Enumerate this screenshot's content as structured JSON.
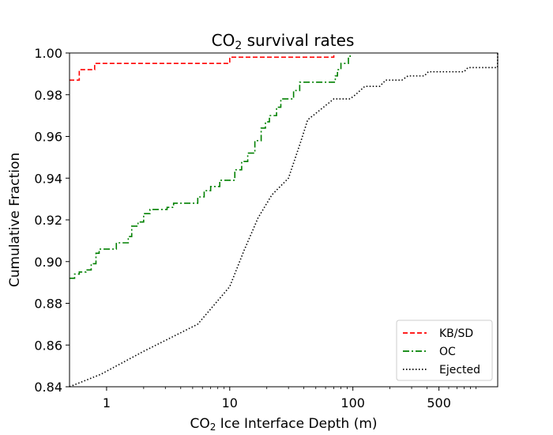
{
  "chart_data": {
    "type": "line",
    "title": "CO2 survival rates",
    "title_parts": {
      "pre": "CO",
      "sub": "2",
      "post": " survival rates"
    },
    "xlabel": "CO2 Ice Interface Depth (m)",
    "xlabel_parts": {
      "pre": "CO",
      "sub": "2",
      "post": " Ice Interface Depth (m)"
    },
    "ylabel": "Cumulative Fraction",
    "xscale": "log",
    "xlim": [
      0.5,
      1500
    ],
    "ylim": [
      0.84,
      1.0
    ],
    "xticks": [
      {
        "value": 1,
        "label": "1"
      },
      {
        "value": 10,
        "label": "10"
      },
      {
        "value": 100,
        "label": "100"
      },
      {
        "value": 500,
        "label": "500"
      }
    ],
    "yticks": [
      {
        "value": 0.84,
        "label": "0.84"
      },
      {
        "value": 0.86,
        "label": "0.86"
      },
      {
        "value": 0.88,
        "label": "0.88"
      },
      {
        "value": 0.9,
        "label": "0.90"
      },
      {
        "value": 0.92,
        "label": "0.92"
      },
      {
        "value": 0.94,
        "label": "0.94"
      },
      {
        "value": 0.96,
        "label": "0.96"
      },
      {
        "value": 0.98,
        "label": "0.98"
      },
      {
        "value": 1.0,
        "label": "1.00"
      }
    ],
    "legend_position": "bottom-right",
    "series": [
      {
        "name": "KB/SD",
        "color": "#ff0000",
        "style": "dashed",
        "step": true,
        "points": [
          [
            0.5,
            0.987
          ],
          [
            0.6,
            0.992
          ],
          [
            0.8,
            0.995
          ],
          [
            10,
            0.998
          ],
          [
            70,
            1.0
          ]
        ]
      },
      {
        "name": "OC",
        "color": "#008000",
        "style": "dashdot",
        "step": true,
        "points": [
          [
            0.5,
            0.892
          ],
          [
            0.55,
            0.894
          ],
          [
            0.6,
            0.895
          ],
          [
            0.68,
            0.896
          ],
          [
            0.75,
            0.899
          ],
          [
            0.82,
            0.904
          ],
          [
            0.87,
            0.906
          ],
          [
            1.05,
            0.906
          ],
          [
            1.2,
            0.909
          ],
          [
            1.45,
            0.909
          ],
          [
            1.5,
            0.912
          ],
          [
            1.6,
            0.917
          ],
          [
            1.8,
            0.919
          ],
          [
            2.0,
            0.923
          ],
          [
            2.25,
            0.925
          ],
          [
            3.1,
            0.926
          ],
          [
            3.5,
            0.928
          ],
          [
            5.5,
            0.931
          ],
          [
            6.2,
            0.934
          ],
          [
            7.0,
            0.936
          ],
          [
            8.3,
            0.939
          ],
          [
            10.5,
            0.939
          ],
          [
            11,
            0.944
          ],
          [
            12.5,
            0.948
          ],
          [
            14,
            0.952
          ],
          [
            16,
            0.958
          ],
          [
            18,
            0.964
          ],
          [
            19.5,
            0.967
          ],
          [
            21,
            0.97
          ],
          [
            24,
            0.974
          ],
          [
            26,
            0.978
          ],
          [
            33,
            0.982
          ],
          [
            37,
            0.986
          ],
          [
            70,
            0.986
          ],
          [
            72,
            0.989
          ],
          [
            75,
            0.992
          ],
          [
            80,
            0.995
          ],
          [
            92,
            0.998
          ],
          [
            95,
            1.0
          ]
        ]
      },
      {
        "name": "Ejected",
        "color": "#000000",
        "style": "dotted",
        "step": false,
        "points": [
          [
            0.5,
            0.84
          ],
          [
            0.9,
            0.846
          ],
          [
            2.0,
            0.857
          ],
          [
            5.5,
            0.87
          ],
          [
            10,
            0.888
          ],
          [
            13,
            0.905
          ],
          [
            17,
            0.921
          ],
          [
            22,
            0.932
          ],
          [
            30,
            0.94
          ],
          [
            38,
            0.958
          ],
          [
            43,
            0.968
          ],
          [
            55,
            0.973
          ],
          [
            70,
            0.978
          ],
          [
            95,
            0.978
          ],
          [
            105,
            0.98
          ],
          [
            125,
            0.984
          ],
          [
            165,
            0.984
          ],
          [
            185,
            0.987
          ],
          [
            250,
            0.987
          ],
          [
            280,
            0.989
          ],
          [
            380,
            0.989
          ],
          [
            410,
            0.991
          ],
          [
            800,
            0.991
          ],
          [
            860,
            0.993
          ],
          [
            1495,
            0.993
          ],
          [
            1500,
            1.0
          ]
        ]
      }
    ]
  }
}
